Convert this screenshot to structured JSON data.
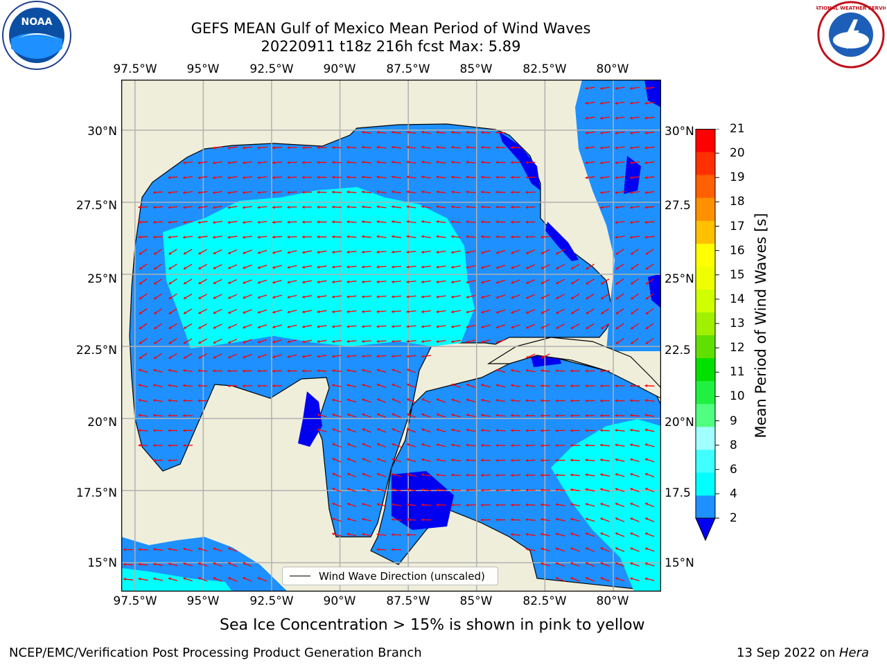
{
  "title": {
    "line1": "GEFS MEAN Gulf of Mexico Mean Period of Wind Waves",
    "line2": "20220911 t18z 216h fcst   Max: 5.89"
  },
  "logos": {
    "left": {
      "icon": "noaa-logo",
      "text": "NOAA"
    },
    "right": {
      "icon": "national-weather-service-logo",
      "text": "NATIONAL WEATHER SERVICE"
    }
  },
  "map": {
    "lon_ticks": [
      "97.5°W",
      "95°W",
      "92.5°W",
      "90°W",
      "87.5°W",
      "85°W",
      "82.5°W",
      "80°W"
    ],
    "lat_ticks_left": [
      "30°N",
      "27.5°N",
      "25°N",
      "22.5°N",
      "20°N",
      "17.5°N",
      "15°N"
    ],
    "lat_ticks_right": [
      "30°N",
      "27.5",
      "25°N",
      "22.5",
      "20°N",
      "17.5",
      "15°N"
    ],
    "extent": {
      "lon": [
        -98,
        -78.25
      ],
      "lat": [
        14,
        31.75
      ]
    },
    "colors": {
      "land": "#efeedb",
      "level_2_4": "#1e90ff",
      "level_4_6": "#00ffff",
      "under_2": "#0000f0",
      "arrows": "#ff0000"
    },
    "legend_label": "Wind Wave Direction (unscaled)"
  },
  "colorbar": {
    "title": "Mean Period of Wind Waves [s]",
    "levels": [
      "2",
      "4",
      "6",
      "8",
      "9",
      "10",
      "11",
      "12",
      "13",
      "14",
      "15",
      "16",
      "17",
      "18",
      "19",
      "20",
      "21"
    ],
    "colors": [
      "#1e90ff",
      "#00ffff",
      "#40ffff",
      "#a0ffff",
      "#50ff80",
      "#20f040",
      "#00e000",
      "#60e000",
      "#a0f000",
      "#d0ff00",
      "#f0ff00",
      "#ffff00",
      "#ffc000",
      "#ff9000",
      "#ff6000",
      "#ff3000",
      "#ff0000"
    ],
    "extend_color": "#0000f0"
  },
  "sea_ice_note": "Sea Ice Concentration > 15% is shown in pink to yellow",
  "footer": {
    "left": "NCEP/EMC/Verification Post Processing Product Generation Branch",
    "date": "13 Sep 2022 on",
    "machine": "Hera"
  }
}
